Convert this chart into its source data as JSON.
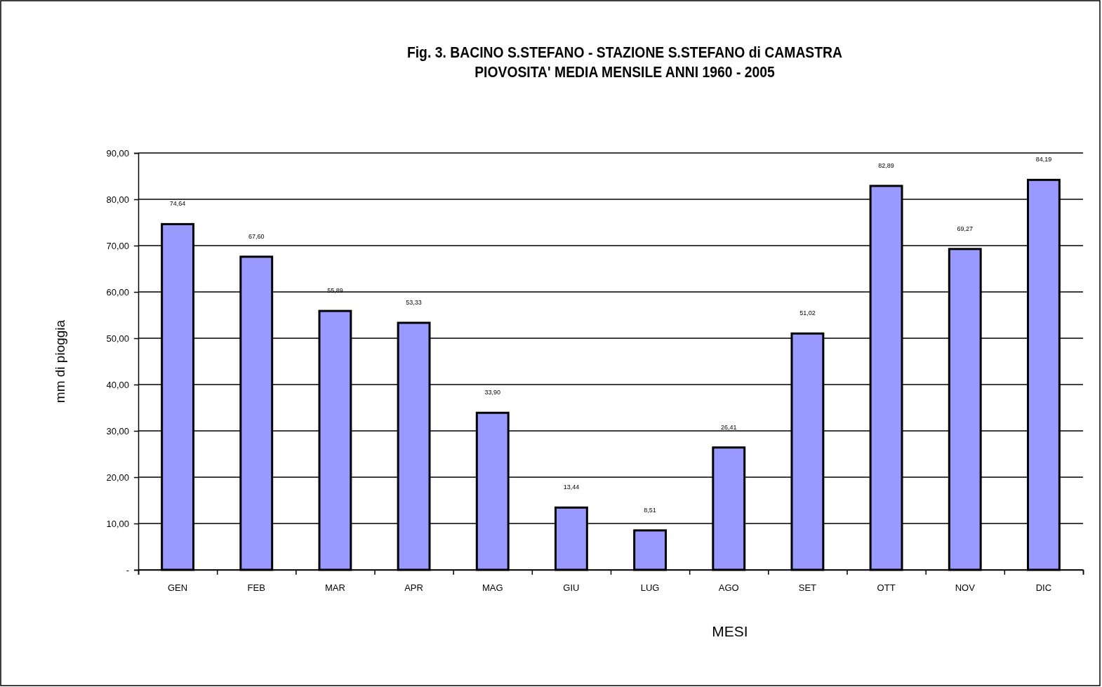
{
  "chart_data": {
    "type": "bar",
    "title": "Fig. 3. BACINO S.STEFANO - STAZIONE S.STEFANO di CAMASTRA",
    "subtitle": "PIOVOSITA' MEDIA MENSILE ANNI 1960 - 2005",
    "xlabel": "MESI",
    "ylabel": "mm di pioggia",
    "categories": [
      "GEN",
      "FEB",
      "MAR",
      "APR",
      "MAG",
      "GIU",
      "LUG",
      "AGO",
      "SET",
      "OTT",
      "NOV",
      "DIC"
    ],
    "values": [
      74.64,
      67.6,
      55.89,
      53.33,
      33.9,
      13.44,
      8.51,
      26.41,
      51.02,
      82.89,
      69.27,
      84.19
    ],
    "value_labels": [
      "74,64",
      "67,60",
      "55,89",
      "53,33",
      "33,90",
      "13,44",
      "8,51",
      "26,41",
      "51,02",
      "82,89",
      "69,27",
      "84,19"
    ],
    "color": "#9999ff",
    "ylim": [
      0,
      90
    ],
    "yticks": [
      {
        "value": 0,
        "label": "-"
      },
      {
        "value": 10,
        "label": "10,00"
      },
      {
        "value": 20,
        "label": "20,00"
      },
      {
        "value": 30,
        "label": "30,00"
      },
      {
        "value": 40,
        "label": "40,00"
      },
      {
        "value": 50,
        "label": "50,00"
      },
      {
        "value": 60,
        "label": "60,00"
      },
      {
        "value": 70,
        "label": "70,00"
      },
      {
        "value": 80,
        "label": "80,00"
      },
      {
        "value": 90,
        "label": "90,00"
      }
    ],
    "grid": "y"
  }
}
